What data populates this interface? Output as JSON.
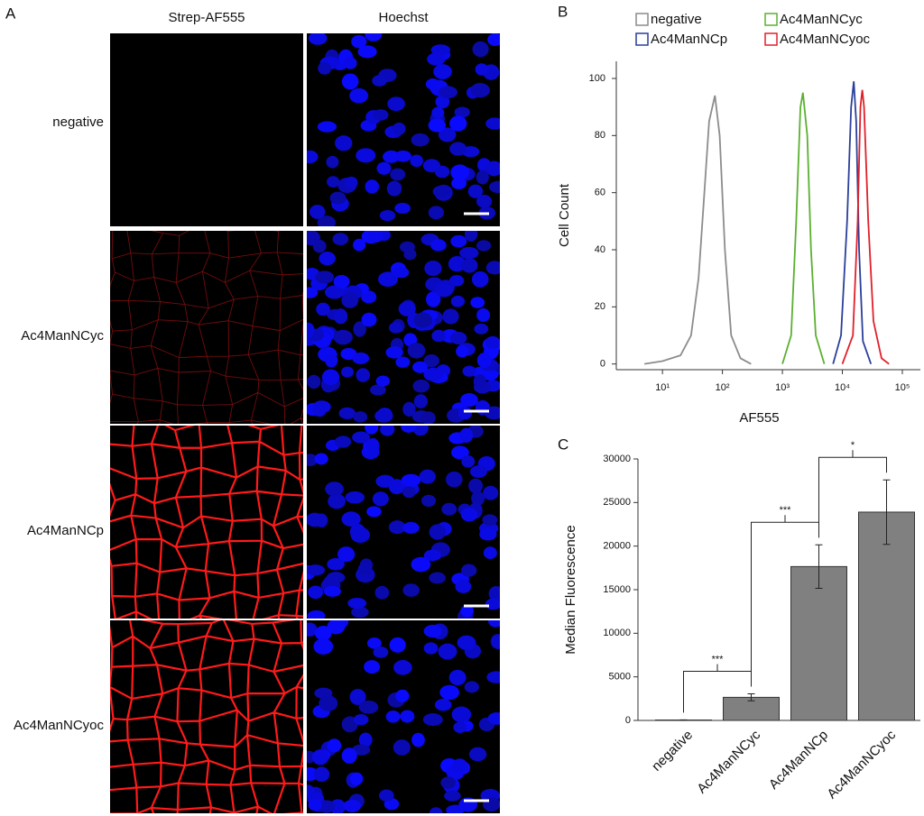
{
  "microscopy": {
    "panel_label": "A",
    "columns": [
      "Strep-AF555",
      "Hoechst"
    ],
    "rows": [
      "negative",
      "Ac4ManNCyc",
      "Ac4ManNCp",
      "Ac4ManNCyoc"
    ]
  },
  "chart_data": [
    {
      "type": "line",
      "panel_label": "B",
      "x_label": "AF555",
      "y_label": "Cell Count",
      "log_x": true,
      "legend": "top",
      "xlim": [
        1.7,
        200000
      ],
      "ylim": [
        -2,
        106
      ],
      "xticks": [
        {
          "value": 10,
          "label": "10¹"
        },
        {
          "value": 100,
          "label": "10²"
        },
        {
          "value": 1000,
          "label": "10³"
        },
        {
          "value": 10000,
          "label": "10⁴"
        },
        {
          "value": 100000,
          "label": "10⁵"
        }
      ],
      "yticks": [
        0,
        20,
        40,
        60,
        80,
        100
      ],
      "series": [
        {
          "name": "negative",
          "color": "#8c8c8c",
          "x": [
            5,
            10,
            20,
            30,
            40,
            50,
            60,
            75,
            90,
            110,
            140,
            200,
            300
          ],
          "values": [
            0,
            1,
            3,
            10,
            30,
            60,
            85,
            94,
            80,
            40,
            10,
            2,
            0
          ]
        },
        {
          "name": "Ac4ManNCyc",
          "color": "#5ab030",
          "x": [
            1000,
            1400,
            1700,
            2000,
            2200,
            2600,
            3000,
            3600,
            5000
          ],
          "values": [
            0,
            10,
            50,
            90,
            95,
            80,
            40,
            10,
            0
          ]
        },
        {
          "name": "Ac4ManNCp",
          "color": "#2a3f9a",
          "x": [
            7000,
            9500,
            12000,
            14000,
            15500,
            17000,
            19000,
            22000,
            30000
          ],
          "values": [
            0,
            10,
            50,
            90,
            99,
            85,
            40,
            8,
            0
          ]
        },
        {
          "name": "Ac4ManNCyoc",
          "color": "#e0202a",
          "x": [
            10000,
            15000,
            18000,
            20000,
            21500,
            23000,
            27000,
            33000,
            45000,
            60000
          ],
          "values": [
            0,
            10,
            50,
            90,
            96,
            90,
            50,
            15,
            2,
            0
          ]
        }
      ]
    },
    {
      "type": "bar",
      "panel_label": "C",
      "y_label": "Median Fluorescence",
      "color": "#808080",
      "categories": [
        "negative",
        "Ac4ManNCyc",
        "Ac4ManNCp",
        "Ac4ManNCyoc"
      ],
      "values": [
        50,
        2650,
        17650,
        23900
      ],
      "errors": [
        20,
        400,
        2500,
        3700
      ],
      "ylim": [
        0,
        30000
      ],
      "yticks": [
        0,
        5000,
        10000,
        15000,
        20000,
        25000,
        30000
      ],
      "annotations": [
        "***",
        "***",
        "*"
      ]
    }
  ]
}
